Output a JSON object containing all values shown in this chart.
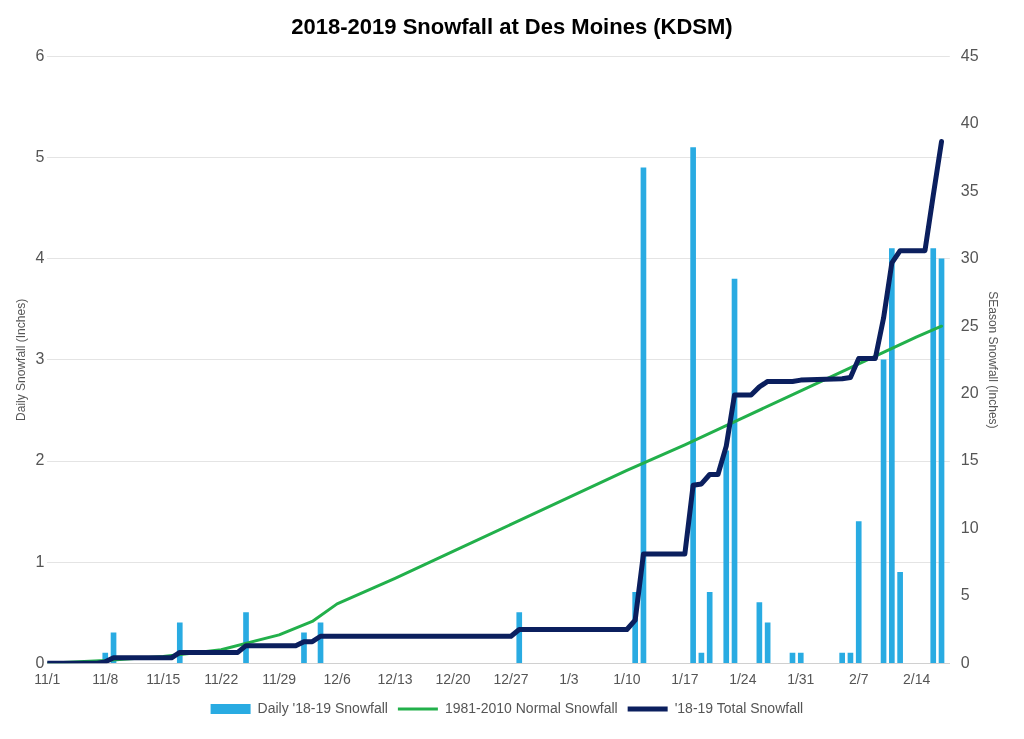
{
  "chart_data": {
    "type": "bar",
    "title": "2018-2019 Snowfall at Des Moines (KDSM)",
    "ylabel": "Daily Snowfall (Inches)",
    "y2label": "SEason Snowfall (Inches)",
    "xlim": [
      "2018-11-01",
      "2019-02-18"
    ],
    "xticks": [
      {
        "value": "2018-11-01",
        "label": "11/1"
      },
      {
        "value": "2018-11-08",
        "label": "11/8"
      },
      {
        "value": "2018-11-15",
        "label": "11/15"
      },
      {
        "value": "2018-11-22",
        "label": "11/22"
      },
      {
        "value": "2018-11-29",
        "label": "11/29"
      },
      {
        "value": "2018-12-06",
        "label": "12/6"
      },
      {
        "value": "2018-12-13",
        "label": "12/13"
      },
      {
        "value": "2018-12-20",
        "label": "12/20"
      },
      {
        "value": "2018-12-27",
        "label": "12/27"
      },
      {
        "value": "2019-01-03",
        "label": "1/3"
      },
      {
        "value": "2019-01-10",
        "label": "1/10"
      },
      {
        "value": "2019-01-17",
        "label": "1/17"
      },
      {
        "value": "2019-01-24",
        "label": "1/24"
      },
      {
        "value": "2019-01-31",
        "label": "1/31"
      },
      {
        "value": "2019-02-07",
        "label": "2/7"
      },
      {
        "value": "2019-02-14",
        "label": "2/14"
      }
    ],
    "ylim": [
      0,
      6
    ],
    "yticks": [
      0,
      1,
      2,
      3,
      4,
      5,
      6
    ],
    "y2lim": [
      0,
      45
    ],
    "y2ticks": [
      0,
      5,
      10,
      15,
      20,
      25,
      30,
      35,
      40,
      45
    ],
    "grid": "y",
    "legend": "bottom",
    "series": [
      {
        "name": "Daily '18-19 Snowfall",
        "color": "#29abe2",
        "x": [
          "2018-11-08",
          "2018-11-09",
          "2018-11-17",
          "2018-11-25",
          "2018-12-02",
          "2018-12-04",
          "2018-12-28",
          "2019-01-11",
          "2019-01-12",
          "2019-01-18",
          "2019-01-19",
          "2019-01-20",
          "2019-01-22",
          "2019-01-23",
          "2019-01-26",
          "2019-01-27",
          "2019-01-30",
          "2019-01-31",
          "2019-02-05",
          "2019-02-06",
          "2019-02-07",
          "2019-02-10",
          "2019-02-11",
          "2019-02-12",
          "2019-02-16",
          "2019-02-17"
        ],
        "values": [
          0.1,
          0.3,
          0.4,
          0.5,
          0.3,
          0.4,
          0.5,
          0.7,
          4.9,
          5.1,
          0.1,
          0.7,
          2.1,
          3.8,
          0.6,
          0.4,
          0.1,
          0.1,
          0.1,
          0.1,
          1.4,
          3.0,
          4.1,
          0.9,
          4.1,
          4.0
        ]
      },
      {
        "name": "1981-2010 Normal Snowfall",
        "type": "line",
        "axis": "y2",
        "color": "#22b04b",
        "x": [
          "2018-11-01",
          "2018-11-08",
          "2018-11-15",
          "2018-11-22",
          "2018-11-29",
          "2018-12-03",
          "2018-12-06",
          "2018-12-13",
          "2018-12-20",
          "2018-12-27",
          "2019-01-03",
          "2019-01-10",
          "2019-01-17",
          "2019-01-24",
          "2019-01-31",
          "2019-02-07",
          "2019-02-14",
          "2019-02-17"
        ],
        "values": [
          0,
          0.2,
          0.5,
          1.0,
          2.1,
          3.1,
          4.4,
          6.3,
          8.3,
          10.3,
          12.3,
          14.3,
          16.2,
          18.2,
          20.2,
          22.2,
          24.2,
          25.0
        ]
      },
      {
        "name": "'18-19 Total Snowfall",
        "type": "line",
        "axis": "y2",
        "color": "#0b1f5e",
        "x": [
          "2018-11-01",
          "2018-11-07",
          "2018-11-08",
          "2018-11-09",
          "2018-11-16",
          "2018-11-17",
          "2018-11-24",
          "2018-11-25",
          "2018-12-01",
          "2018-12-02",
          "2018-12-03",
          "2018-12-04",
          "2018-12-27",
          "2018-12-28",
          "2019-01-10",
          "2019-01-11",
          "2019-01-12",
          "2019-01-17",
          "2019-01-18",
          "2019-01-19",
          "2019-01-20",
          "2019-01-21",
          "2019-01-22",
          "2019-01-23",
          "2019-01-25",
          "2019-01-26",
          "2019-01-27",
          "2019-01-30",
          "2019-01-31",
          "2019-02-05",
          "2019-02-06",
          "2019-02-07",
          "2019-02-09",
          "2019-02-10",
          "2019-02-11",
          "2019-02-12",
          "2019-02-15",
          "2019-02-16",
          "2019-02-17"
        ],
        "values": [
          0,
          0,
          0.1,
          0.4,
          0.4,
          0.8,
          0.8,
          1.3,
          1.3,
          1.6,
          1.6,
          2.0,
          2.0,
          2.5,
          2.5,
          3.2,
          8.1,
          8.1,
          13.2,
          13.3,
          14.0,
          14.0,
          16.1,
          19.9,
          19.9,
          20.5,
          20.9,
          20.9,
          21.0,
          21.1,
          21.2,
          22.6,
          22.6,
          25.6,
          29.7,
          30.6,
          30.6,
          34.7,
          38.7
        ]
      }
    ]
  }
}
